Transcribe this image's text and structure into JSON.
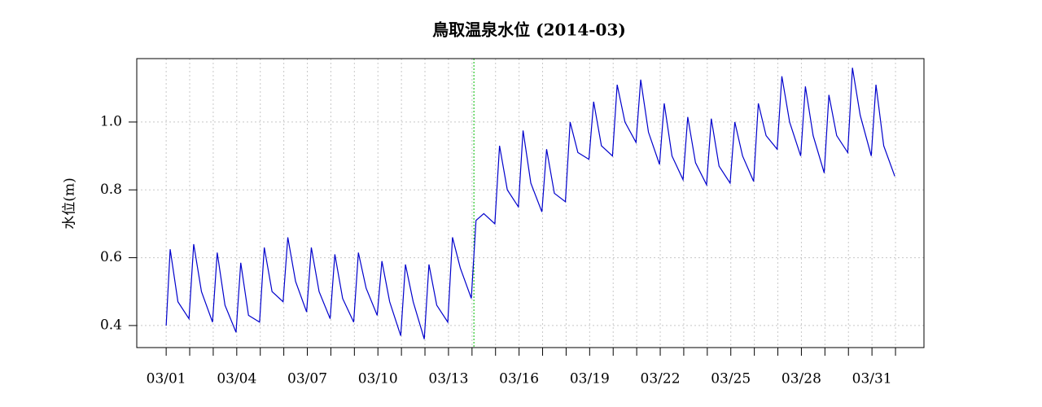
{
  "chart_data": {
    "type": "line",
    "title": "鳥取温泉水位 (2014-03)",
    "y_label": "水位(m)",
    "x": [
      1.0,
      1.17,
      1.5,
      1.97,
      2.17,
      2.5,
      2.97,
      3.17,
      3.5,
      3.97,
      4.17,
      4.5,
      4.97,
      5.17,
      5.5,
      5.97,
      6.17,
      6.5,
      6.97,
      7.17,
      7.5,
      7.97,
      8.17,
      8.5,
      8.97,
      9.17,
      9.5,
      9.97,
      10.17,
      10.5,
      10.97,
      11.17,
      11.5,
      11.97,
      12.17,
      12.5,
      12.97,
      13.17,
      13.5,
      13.97,
      14.17,
      14.5,
      14.97,
      15.17,
      15.5,
      15.97,
      16.17,
      16.5,
      16.97,
      17.17,
      17.5,
      17.97,
      18.17,
      18.5,
      18.97,
      19.17,
      19.5,
      19.97,
      20.17,
      20.5,
      20.97,
      21.17,
      21.5,
      21.97,
      22.17,
      22.5,
      22.97,
      23.17,
      23.5,
      23.97,
      24.17,
      24.5,
      24.97,
      25.17,
      25.5,
      25.97,
      26.17,
      26.5,
      26.97,
      27.17,
      27.5,
      27.97,
      28.17,
      28.5,
      28.97,
      29.17,
      29.5,
      29.97,
      30.17,
      30.5,
      30.97,
      31.17,
      31.5,
      31.97
    ],
    "series": [
      {
        "color": "#0000cc",
        "values": [
          0.4,
          0.625,
          0.47,
          0.42,
          0.64,
          0.5,
          0.41,
          0.615,
          0.46,
          0.38,
          0.585,
          0.43,
          0.41,
          0.63,
          0.5,
          0.47,
          0.66,
          0.53,
          0.44,
          0.63,
          0.5,
          0.42,
          0.61,
          0.48,
          0.41,
          0.615,
          0.51,
          0.43,
          0.59,
          0.47,
          0.37,
          0.58,
          0.47,
          0.36,
          0.58,
          0.46,
          0.41,
          0.66,
          0.57,
          0.48,
          0.71,
          0.73,
          0.7,
          0.93,
          0.8,
          0.75,
          0.975,
          0.82,
          0.735,
          0.92,
          0.79,
          0.765,
          1.0,
          0.91,
          0.89,
          1.06,
          0.93,
          0.9,
          1.11,
          1.0,
          0.94,
          1.125,
          0.97,
          0.875,
          1.055,
          0.9,
          0.83,
          1.015,
          0.88,
          0.815,
          1.01,
          0.87,
          0.82,
          1.0,
          0.9,
          0.825,
          1.055,
          0.96,
          0.92,
          1.135,
          1.0,
          0.9,
          1.105,
          0.96,
          0.85,
          1.08,
          0.96,
          0.91,
          1.16,
          1.02,
          0.9,
          1.11,
          0.93,
          0.84
        ]
      }
    ],
    "xlim": [
      -0.25,
      33.21
    ],
    "xticks": [
      {
        "value": 1,
        "label": "03/01"
      },
      {
        "value": 4,
        "label": "03/04"
      },
      {
        "value": 7,
        "label": "03/07"
      },
      {
        "value": 10,
        "label": "03/10"
      },
      {
        "value": 13,
        "label": "03/13"
      },
      {
        "value": 16,
        "label": "03/16"
      },
      {
        "value": 19,
        "label": "03/19"
      },
      {
        "value": 22,
        "label": "03/22"
      },
      {
        "value": 25,
        "label": "03/25"
      },
      {
        "value": 28,
        "label": "03/28"
      },
      {
        "value": 31,
        "label": "03/31"
      }
    ],
    "xminor": [
      1,
      2,
      3,
      4,
      5,
      6,
      7,
      8,
      9,
      10,
      11,
      12,
      13,
      14,
      15,
      16,
      17,
      18,
      19,
      20,
      21,
      22,
      23,
      24,
      25,
      26,
      27,
      28,
      29,
      30,
      31,
      32
    ],
    "ylim": [
      0.335,
      1.187
    ],
    "yticks": [
      0.4,
      0.6,
      0.8,
      {
        "value": 1,
        "label": "1.0"
      }
    ],
    "grid": true,
    "vline": {
      "x": 14.08,
      "color": "#00bb00"
    }
  }
}
